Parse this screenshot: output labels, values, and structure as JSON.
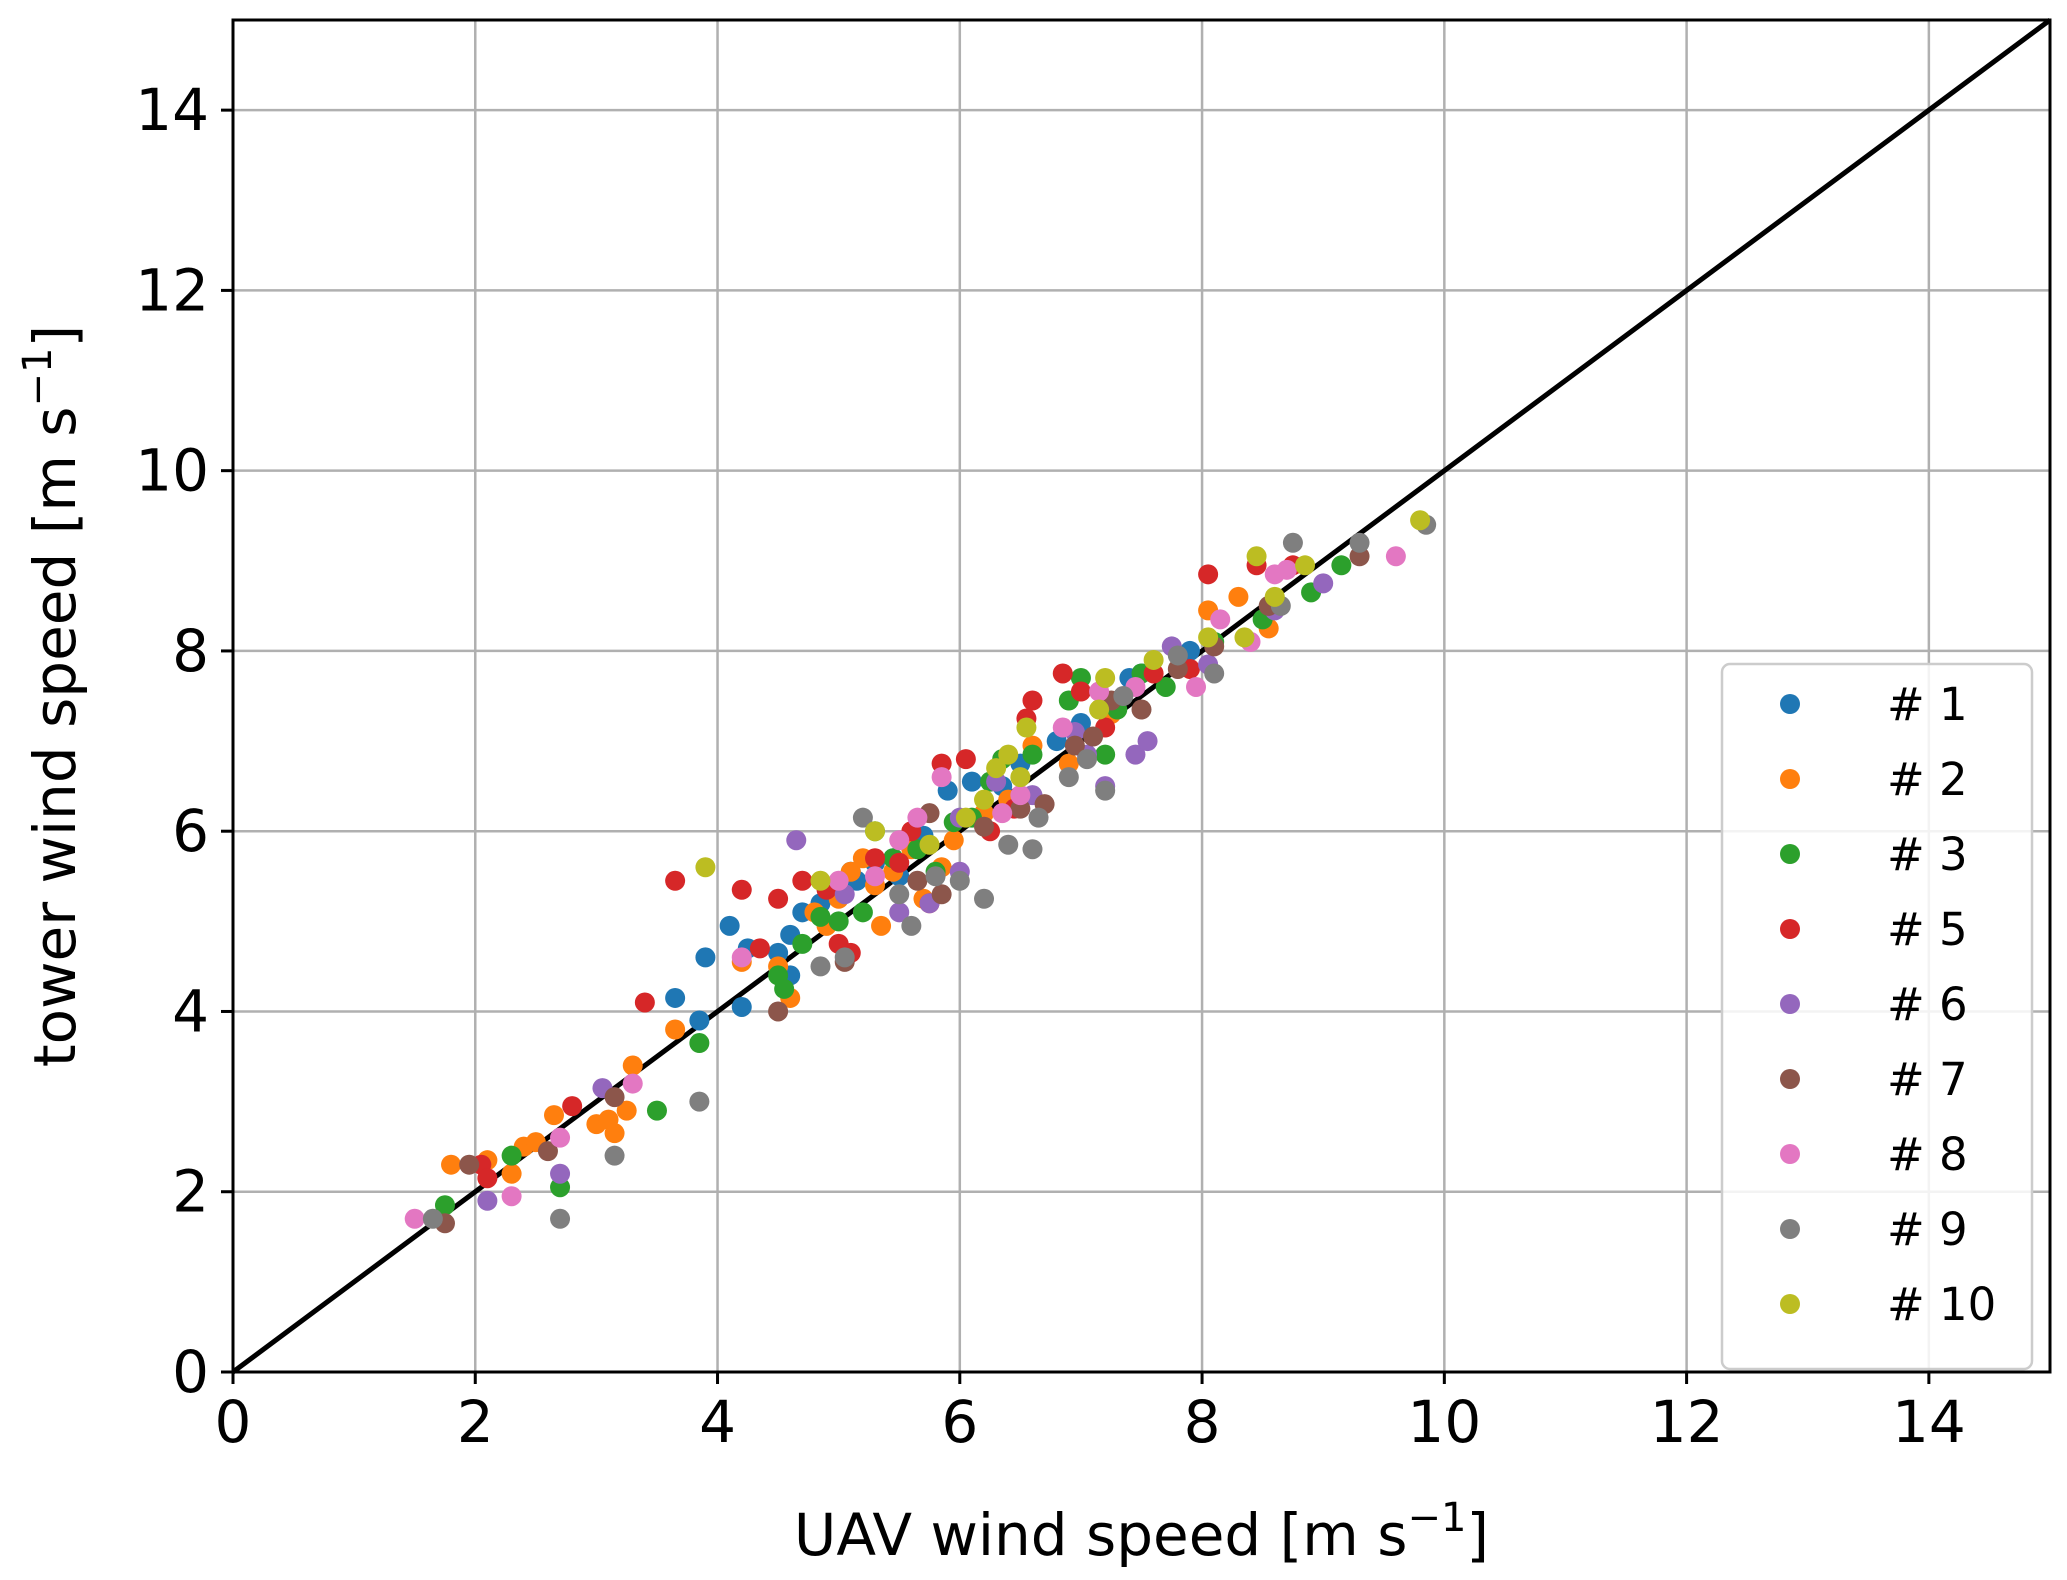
{
  "chart_data": {
    "type": "scatter",
    "xlabel": {
      "text": "UAV wind speed [m s",
      "sup": "−1",
      "close": "]"
    },
    "ylabel": {
      "text": "tower wind speed [m s",
      "sup": "−1",
      "close": "]"
    },
    "xlim": [
      0,
      15
    ],
    "ylim": [
      0,
      15
    ],
    "xticks": [
      "0",
      "2",
      "4",
      "6",
      "8",
      "10",
      "12",
      "14"
    ],
    "yticks": [
      "0",
      "2",
      "4",
      "6",
      "8",
      "10",
      "12",
      "14"
    ],
    "grid": true,
    "legend_position": "lower-right",
    "reference_line": {
      "x": [
        0,
        15
      ],
      "y": [
        0,
        15
      ],
      "color": "#000000"
    },
    "series": [
      {
        "name": "# 1",
        "color": "#1f77b4",
        "points": [
          [
            3.65,
            4.15
          ],
          [
            3.85,
            3.9
          ],
          [
            3.9,
            4.6
          ],
          [
            4.1,
            4.95
          ],
          [
            4.2,
            4.05
          ],
          [
            4.25,
            4.7
          ],
          [
            4.5,
            4.65
          ],
          [
            4.6,
            4.85
          ],
          [
            4.6,
            4.4
          ],
          [
            4.7,
            5.1
          ],
          [
            4.85,
            5.2
          ],
          [
            5.0,
            5.3
          ],
          [
            5.1,
            5.55
          ],
          [
            5.15,
            5.45
          ],
          [
            5.3,
            5.65
          ],
          [
            5.45,
            5.7
          ],
          [
            5.5,
            5.5
          ],
          [
            5.7,
            5.95
          ],
          [
            5.9,
            6.45
          ],
          [
            6.1,
            6.55
          ],
          [
            6.35,
            6.5
          ],
          [
            6.5,
            6.75
          ],
          [
            6.8,
            7.0
          ],
          [
            7.0,
            7.2
          ],
          [
            7.4,
            7.7
          ],
          [
            7.5,
            7.75
          ],
          [
            7.9,
            8.0
          ]
        ]
      },
      {
        "name": "# 2",
        "color": "#ff7f0e",
        "points": [
          [
            1.8,
            2.3
          ],
          [
            2.1,
            2.35
          ],
          [
            2.3,
            2.2
          ],
          [
            2.4,
            2.5
          ],
          [
            2.5,
            2.55
          ],
          [
            2.65,
            2.85
          ],
          [
            3.0,
            2.75
          ],
          [
            3.1,
            2.8
          ],
          [
            3.15,
            2.65
          ],
          [
            3.25,
            2.9
          ],
          [
            3.3,
            3.4
          ],
          [
            3.65,
            3.8
          ],
          [
            4.2,
            4.55
          ],
          [
            4.5,
            4.5
          ],
          [
            4.6,
            4.15
          ],
          [
            4.8,
            5.1
          ],
          [
            4.9,
            4.95
          ],
          [
            5.0,
            5.25
          ],
          [
            5.1,
            5.55
          ],
          [
            5.2,
            5.7
          ],
          [
            5.3,
            5.4
          ],
          [
            5.35,
            4.95
          ],
          [
            5.45,
            5.55
          ],
          [
            5.6,
            5.8
          ],
          [
            5.7,
            5.25
          ],
          [
            5.85,
            5.6
          ],
          [
            5.95,
            5.9
          ],
          [
            6.2,
            6.2
          ],
          [
            6.4,
            6.35
          ],
          [
            6.6,
            6.95
          ],
          [
            6.9,
            6.75
          ],
          [
            7.25,
            7.3
          ],
          [
            8.05,
            8.45
          ],
          [
            8.3,
            8.6
          ],
          [
            8.55,
            8.25
          ]
        ]
      },
      {
        "name": "# 3",
        "color": "#2ca02c",
        "points": [
          [
            1.75,
            1.85
          ],
          [
            2.3,
            2.4
          ],
          [
            2.7,
            2.05
          ],
          [
            3.5,
            2.9
          ],
          [
            3.85,
            3.65
          ],
          [
            4.5,
            4.4
          ],
          [
            4.55,
            4.25
          ],
          [
            4.7,
            4.75
          ],
          [
            4.85,
            5.05
          ],
          [
            5.0,
            5.0
          ],
          [
            5.2,
            5.1
          ],
          [
            5.3,
            6.0
          ],
          [
            5.45,
            5.7
          ],
          [
            5.65,
            5.8
          ],
          [
            5.8,
            5.55
          ],
          [
            5.95,
            6.1
          ],
          [
            6.1,
            6.15
          ],
          [
            6.25,
            6.55
          ],
          [
            6.35,
            6.8
          ],
          [
            6.6,
            6.85
          ],
          [
            6.9,
            7.45
          ],
          [
            7.0,
            7.7
          ],
          [
            7.2,
            6.85
          ],
          [
            7.3,
            7.35
          ],
          [
            7.5,
            7.75
          ],
          [
            7.7,
            7.6
          ],
          [
            8.1,
            8.1
          ],
          [
            8.5,
            8.35
          ],
          [
            8.9,
            8.65
          ],
          [
            9.15,
            8.95
          ]
        ]
      },
      {
        "name": "# 5",
        "color": "#d62728",
        "points": [
          [
            2.05,
            2.3
          ],
          [
            2.1,
            2.15
          ],
          [
            2.8,
            2.95
          ],
          [
            3.4,
            4.1
          ],
          [
            3.65,
            5.45
          ],
          [
            4.2,
            5.35
          ],
          [
            4.35,
            4.7
          ],
          [
            4.5,
            5.25
          ],
          [
            4.7,
            5.45
          ],
          [
            4.9,
            5.35
          ],
          [
            5.0,
            4.75
          ],
          [
            5.1,
            4.65
          ],
          [
            5.3,
            5.7
          ],
          [
            5.5,
            5.65
          ],
          [
            5.6,
            6.0
          ],
          [
            5.75,
            5.2
          ],
          [
            5.85,
            6.75
          ],
          [
            6.05,
            6.8
          ],
          [
            6.25,
            6.0
          ],
          [
            6.45,
            6.25
          ],
          [
            6.55,
            7.25
          ],
          [
            6.6,
            7.45
          ],
          [
            6.85,
            7.75
          ],
          [
            7.0,
            7.55
          ],
          [
            7.2,
            7.15
          ],
          [
            7.6,
            7.75
          ],
          [
            7.9,
            7.8
          ],
          [
            8.05,
            8.85
          ],
          [
            8.45,
            8.95
          ],
          [
            8.75,
            8.95
          ]
        ]
      },
      {
        "name": "# 6",
        "color": "#9467bd",
        "points": [
          [
            2.1,
            1.9
          ],
          [
            2.7,
            2.2
          ],
          [
            3.05,
            3.15
          ],
          [
            4.65,
            5.9
          ],
          [
            5.05,
            5.3
          ],
          [
            5.5,
            5.1
          ],
          [
            5.75,
            5.2
          ],
          [
            6.0,
            5.55
          ],
          [
            6.0,
            6.15
          ],
          [
            6.3,
            6.55
          ],
          [
            6.6,
            6.4
          ],
          [
            6.95,
            7.1
          ],
          [
            7.05,
            6.85
          ],
          [
            7.2,
            6.5
          ],
          [
            7.45,
            6.85
          ],
          [
            7.55,
            7.0
          ],
          [
            7.75,
            8.05
          ],
          [
            8.05,
            7.85
          ],
          [
            8.6,
            8.45
          ],
          [
            9.0,
            8.75
          ]
        ]
      },
      {
        "name": "# 7",
        "color": "#8c564b",
        "points": [
          [
            1.75,
            1.65
          ],
          [
            1.95,
            2.3
          ],
          [
            2.6,
            2.45
          ],
          [
            3.15,
            3.05
          ],
          [
            4.5,
            4.0
          ],
          [
            5.05,
            4.55
          ],
          [
            5.65,
            5.45
          ],
          [
            5.85,
            5.3
          ],
          [
            5.75,
            6.2
          ],
          [
            6.2,
            6.05
          ],
          [
            6.5,
            6.25
          ],
          [
            6.7,
            6.3
          ],
          [
            6.95,
            6.95
          ],
          [
            7.1,
            7.05
          ],
          [
            7.25,
            7.45
          ],
          [
            7.5,
            7.35
          ],
          [
            7.8,
            7.8
          ],
          [
            8.1,
            8.05
          ],
          [
            8.55,
            8.5
          ],
          [
            9.3,
            9.05
          ]
        ]
      },
      {
        "name": "# 8",
        "color": "#e377c2",
        "points": [
          [
            1.5,
            1.7
          ],
          [
            2.3,
            1.95
          ],
          [
            2.7,
            2.6
          ],
          [
            3.3,
            3.2
          ],
          [
            4.2,
            4.6
          ],
          [
            5.0,
            5.45
          ],
          [
            5.3,
            5.5
          ],
          [
            5.5,
            5.9
          ],
          [
            5.65,
            6.15
          ],
          [
            5.85,
            6.6
          ],
          [
            6.35,
            6.2
          ],
          [
            6.5,
            6.4
          ],
          [
            6.85,
            7.15
          ],
          [
            7.15,
            7.55
          ],
          [
            7.45,
            7.6
          ],
          [
            7.95,
            7.6
          ],
          [
            8.15,
            8.35
          ],
          [
            8.4,
            8.1
          ],
          [
            8.6,
            8.85
          ],
          [
            8.7,
            8.9
          ],
          [
            9.6,
            9.05
          ]
        ]
      },
      {
        "name": "# 9",
        "color": "#7f7f7f",
        "points": [
          [
            1.65,
            1.7
          ],
          [
            2.7,
            1.7
          ],
          [
            3.15,
            2.4
          ],
          [
            3.85,
            3.0
          ],
          [
            4.85,
            4.5
          ],
          [
            5.05,
            4.6
          ],
          [
            5.2,
            6.15
          ],
          [
            5.5,
            5.3
          ],
          [
            5.6,
            4.95
          ],
          [
            5.8,
            5.5
          ],
          [
            6.0,
            5.45
          ],
          [
            6.2,
            5.25
          ],
          [
            6.4,
            5.85
          ],
          [
            6.6,
            5.8
          ],
          [
            6.65,
            6.15
          ],
          [
            6.9,
            6.6
          ],
          [
            7.05,
            6.8
          ],
          [
            7.2,
            6.45
          ],
          [
            7.35,
            7.5
          ],
          [
            7.8,
            7.95
          ],
          [
            8.1,
            7.75
          ],
          [
            8.65,
            8.5
          ],
          [
            8.75,
            9.2
          ],
          [
            9.3,
            9.2
          ],
          [
            9.85,
            9.4
          ]
        ]
      },
      {
        "name": "# 10",
        "color": "#bcbd22",
        "points": [
          [
            3.9,
            5.6
          ],
          [
            4.85,
            5.45
          ],
          [
            5.3,
            6.0
          ],
          [
            5.75,
            5.85
          ],
          [
            6.05,
            6.15
          ],
          [
            6.2,
            6.35
          ],
          [
            6.3,
            6.7
          ],
          [
            6.4,
            6.85
          ],
          [
            6.5,
            6.6
          ],
          [
            6.55,
            7.15
          ],
          [
            7.15,
            7.35
          ],
          [
            7.2,
            7.7
          ],
          [
            7.6,
            7.9
          ],
          [
            8.05,
            8.15
          ],
          [
            8.35,
            8.15
          ],
          [
            8.45,
            9.05
          ],
          [
            8.6,
            8.6
          ],
          [
            8.85,
            8.95
          ],
          [
            9.8,
            9.45
          ]
        ]
      }
    ]
  }
}
